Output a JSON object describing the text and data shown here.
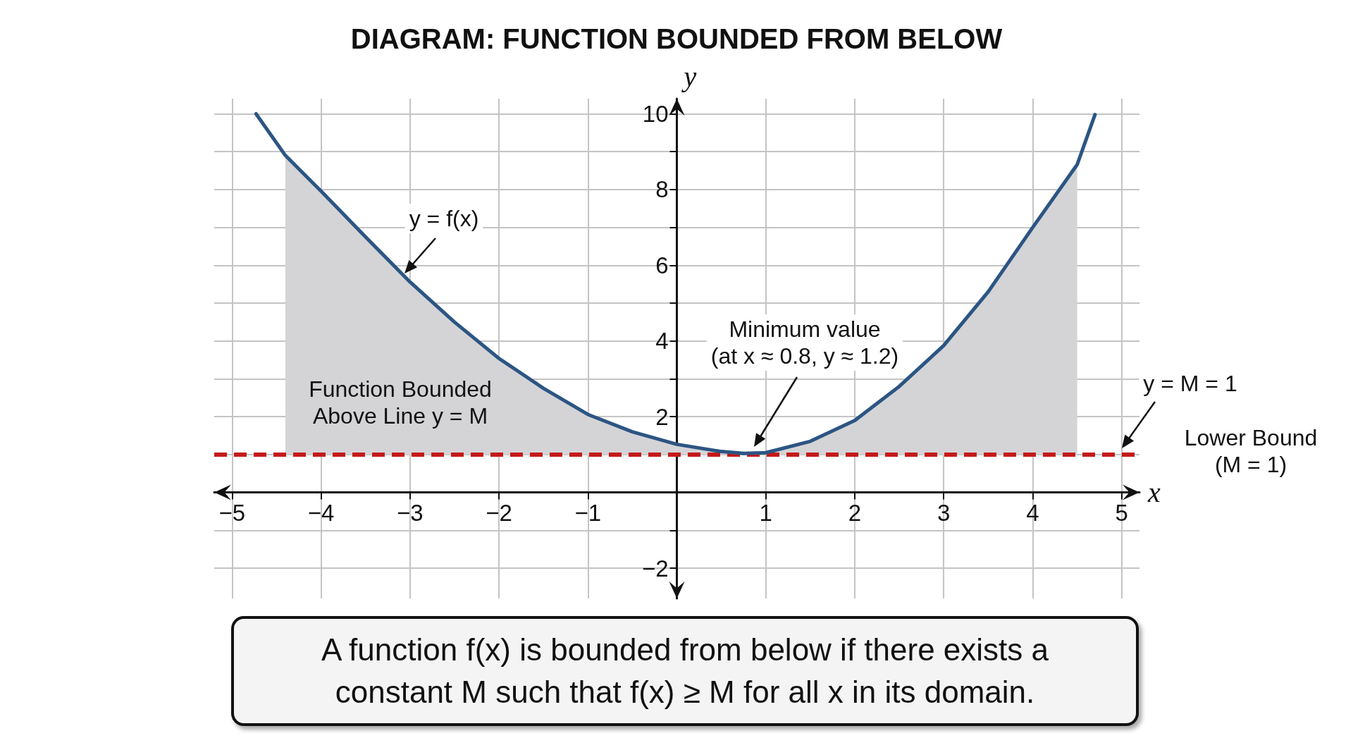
{
  "chart_data": {
    "type": "line",
    "title": "DIAGRAM: FUNCTION BOUNDED FROM BELOW",
    "xlabel": "x",
    "ylabel": "y",
    "xlim": [
      -5.2,
      5.2
    ],
    "ylim": [
      -2.8,
      10.4
    ],
    "xticks": [
      -5,
      -4,
      -3,
      -2,
      -1,
      {
        "value": 0,
        "label": null
      },
      1,
      2,
      3,
      4,
      5
    ],
    "yticks": [
      -2,
      {
        "value": -1,
        "label": null
      },
      {
        "value": 0,
        "label": null
      },
      {
        "value": 1,
        "label": null
      },
      2,
      {
        "value": 3,
        "label": null
      },
      4,
      {
        "value": 5,
        "label": null
      },
      6,
      {
        "value": 7,
        "label": null
      },
      8,
      {
        "value": 9,
        "label": null
      },
      10
    ],
    "grid": true,
    "marker": "none",
    "line_style": "solid",
    "series": [
      {
        "type": "area",
        "color": "#d4d4d7",
        "x": [
          -4.4,
          -4,
          -3.5,
          -3,
          -2.5,
          -2,
          -1.5,
          -1,
          -0.5,
          0,
          0.5,
          0.75,
          1,
          1.5,
          2,
          2.5,
          3,
          3.5,
          4,
          4.5
        ],
        "values": [
          8.9,
          7.96,
          6.75,
          5.56,
          4.5,
          3.54,
          2.75,
          2.06,
          1.6,
          1.27,
          1.08,
          1.03,
          1.05,
          1.35,
          1.9,
          2.8,
          3.88,
          5.3,
          7.0,
          8.66
        ]
      },
      {
        "color": "#2c5583",
        "x": [
          -4.73,
          -4.4,
          -4,
          -3.5,
          -3,
          -2.5,
          -2,
          -1.5,
          -1,
          -0.5,
          0,
          0.5,
          0.75,
          1,
          1.5,
          2,
          2.5,
          3,
          3.5,
          4,
          4.5,
          4.7
        ],
        "values": [
          10,
          8.9,
          7.96,
          6.75,
          5.56,
          4.5,
          3.54,
          2.75,
          2.06,
          1.6,
          1.27,
          1.08,
          1.03,
          1.05,
          1.35,
          1.9,
          2.8,
          3.88,
          5.3,
          7.0,
          8.66,
          9.98
        ]
      }
    ],
    "ref_lines": [
      {
        "axis": "y",
        "value": 1,
        "label": "y = M = 1",
        "color": "#c41a1a",
        "line_style": "dashed"
      }
    ],
    "annotations": [
      "y = f(x)",
      "Minimum value\n(at x ≈ 0.8, y ≈ 1.2)",
      "Function Bounded\nAbove Line y = M",
      "Lower Bound\n(M = 1)",
      "A function f(x) is bounded from below if there exists a\nconstant M such that f(x) ≥ M for all x in its domain."
    ]
  }
}
